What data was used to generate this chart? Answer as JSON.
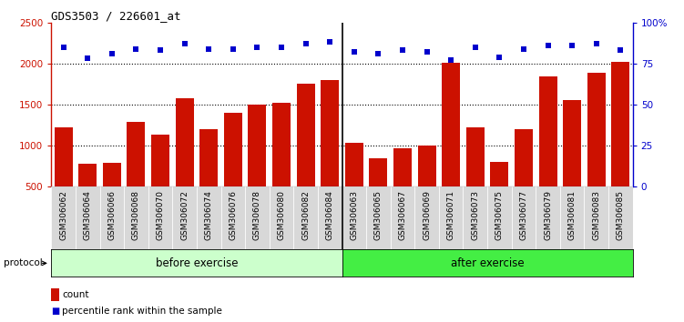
{
  "title": "GDS3503 / 226601_at",
  "samples": [
    "GSM306062",
    "GSM306064",
    "GSM306066",
    "GSM306068",
    "GSM306070",
    "GSM306072",
    "GSM306074",
    "GSM306076",
    "GSM306078",
    "GSM306080",
    "GSM306082",
    "GSM306084",
    "GSM306063",
    "GSM306065",
    "GSM306067",
    "GSM306069",
    "GSM306071",
    "GSM306073",
    "GSM306075",
    "GSM306077",
    "GSM306079",
    "GSM306081",
    "GSM306083",
    "GSM306085"
  ],
  "counts": [
    1220,
    780,
    790,
    1290,
    1130,
    1580,
    1200,
    1400,
    1500,
    1520,
    1760,
    1800,
    1030,
    850,
    970,
    1000,
    2010,
    1220,
    800,
    1200,
    1840,
    1560,
    1890,
    2020
  ],
  "percentile_ranks": [
    85,
    78,
    81,
    84,
    83,
    87,
    84,
    84,
    85,
    85,
    87,
    88,
    82,
    81,
    83,
    82,
    77,
    85,
    79,
    84,
    86,
    86,
    87,
    83
  ],
  "before_count": 12,
  "after_count": 12,
  "before_label": "before exercise",
  "after_label": "after exercise",
  "protocol_label": "protocol",
  "bar_color": "#cc1100",
  "dot_color": "#0000cc",
  "before_color": "#ccffcc",
  "after_color": "#44ee44",
  "xtick_bg_color": "#d8d8d8",
  "ylim_left": [
    500,
    2500
  ],
  "yticks_left": [
    500,
    1000,
    1500,
    2000,
    2500
  ],
  "ylim_right": [
    0,
    100
  ],
  "yticks_right": [
    0,
    25,
    50,
    75,
    100
  ],
  "grid_lines": [
    1000,
    1500,
    2000
  ],
  "legend_count_label": "count",
  "legend_pct_label": "percentile rank within the sample"
}
